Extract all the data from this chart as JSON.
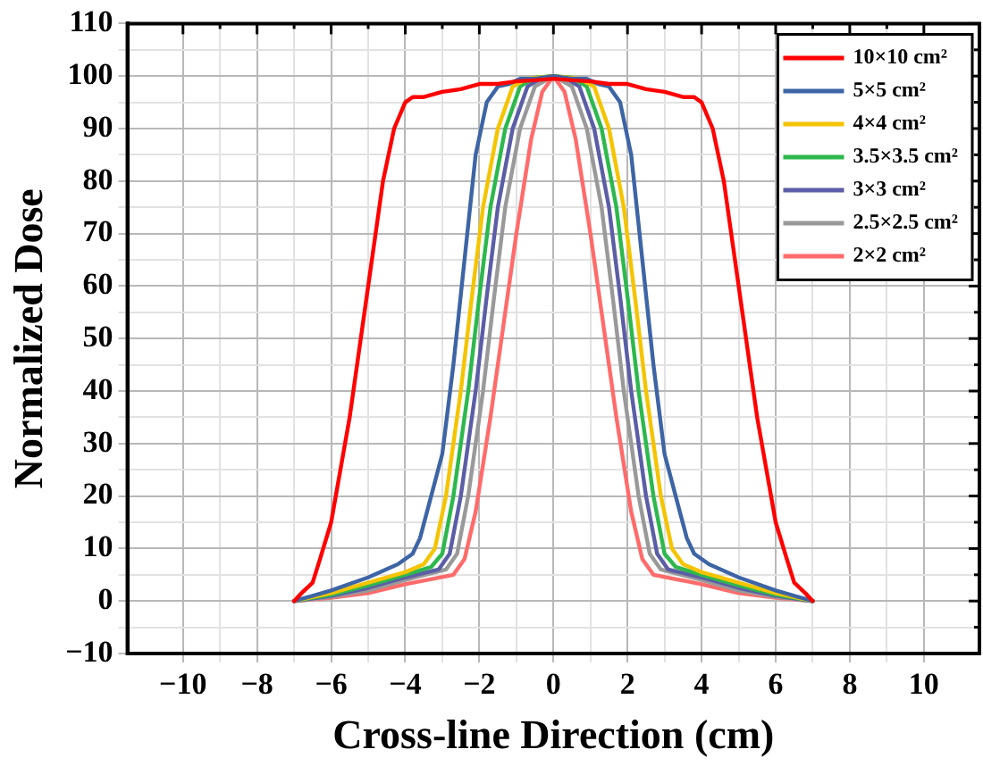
{
  "chart_data": {
    "type": "line",
    "xlabel": "Cross-line Direction (cm)",
    "ylabel": "Normalized Dose",
    "xlim": [
      -11.5,
      11.5
    ],
    "xticks": [
      -10,
      -8,
      -6,
      -4,
      -2,
      0,
      2,
      4,
      6,
      8,
      10
    ],
    "ylim": [
      -10,
      110
    ],
    "yticks": [
      -10,
      0,
      10,
      20,
      30,
      40,
      50,
      60,
      70,
      80,
      90,
      100,
      110
    ],
    "grid": true,
    "legend": "top right",
    "marker": "none",
    "line_style": "solid",
    "series": [
      {
        "name": "10×10 cm²",
        "color": "#ff0000",
        "x": [
          -7,
          -6.8,
          -6.5,
          -6.3,
          -6,
          -5.5,
          -5,
          -4.6,
          -4.3,
          -4,
          -3.8,
          -3.5,
          -3,
          -2.5,
          -2,
          -1.5,
          -1,
          -0.5,
          0,
          0.5,
          1,
          1.5,
          2,
          2.5,
          3,
          3.5,
          3.8,
          4,
          4.3,
          4.6,
          5,
          5.5,
          6,
          6.3,
          6.5,
          6.8,
          7
        ],
        "values": [
          0,
          1.5,
          3.5,
          8,
          15,
          35,
          60,
          80,
          90,
          95,
          96,
          96,
          97,
          97.5,
          98.5,
          98.5,
          99,
          99.2,
          99.5,
          99.2,
          99,
          98.5,
          98.5,
          97.5,
          97,
          96,
          96,
          95,
          90,
          80,
          60,
          35,
          15,
          8,
          3.5,
          1.5,
          0
        ]
      },
      {
        "name": "5×5 cm²",
        "color": "#3d65a5",
        "x": [
          -7,
          -6.5,
          -6,
          -5,
          -4.2,
          -3.8,
          -3.6,
          -3.3,
          -3,
          -2.7,
          -2.4,
          -2.1,
          -1.8,
          -1.5,
          -1.2,
          -0.9,
          -0.5,
          0,
          0.5,
          0.9,
          1.2,
          1.5,
          1.8,
          2.1,
          2.4,
          2.7,
          3,
          3.3,
          3.6,
          3.8,
          4.2,
          5,
          6,
          6.5,
          7
        ],
        "values": [
          0,
          1,
          2,
          4.5,
          7,
          9,
          12,
          20,
          28,
          45,
          65,
          85,
          95,
          98,
          98.5,
          99.5,
          99.5,
          100,
          99.5,
          99.5,
          98.5,
          98,
          95,
          85,
          65,
          45,
          28,
          20,
          12,
          9,
          7,
          4.5,
          2,
          1,
          0
        ]
      },
      {
        "name": "4×4 cm²",
        "color": "#f5c400",
        "x": [
          -7,
          -6,
          -5,
          -4,
          -3.5,
          -3.2,
          -2.9,
          -2.5,
          -2.2,
          -1.9,
          -1.5,
          -1.1,
          -0.7,
          0,
          0.7,
          1.1,
          1.5,
          1.9,
          2.2,
          2.5,
          2.9,
          3.2,
          3.5,
          4,
          5,
          6,
          7
        ],
        "values": [
          0,
          1.5,
          3.5,
          5.5,
          7,
          10,
          20,
          40,
          58,
          75,
          90,
          98,
          99.5,
          100,
          99.5,
          98,
          90,
          75,
          58,
          40,
          20,
          10,
          7,
          5.5,
          3.5,
          1.5,
          0
        ]
      },
      {
        "name": "3.5×3.5 cm²",
        "color": "#2db84d",
        "x": [
          -7,
          -6,
          -5,
          -4,
          -3.3,
          -3,
          -2.7,
          -2.3,
          -2,
          -1.7,
          -1.3,
          -0.9,
          -0.5,
          0,
          0.5,
          0.9,
          1.3,
          1.7,
          2,
          2.3,
          2.7,
          3,
          3.3,
          4,
          5,
          6,
          7
        ],
        "values": [
          0,
          1.2,
          3,
          5,
          6.5,
          9,
          20,
          40,
          58,
          75,
          90,
          98,
          99.7,
          100,
          99.7,
          98,
          90,
          75,
          58,
          40,
          20,
          9,
          6.5,
          5,
          3,
          1.2,
          0
        ]
      },
      {
        "name": "3×3 cm²",
        "color": "#5b5ea6",
        "x": [
          -7,
          -6,
          -5,
          -4,
          -3.1,
          -2.8,
          -2.5,
          -2.1,
          -1.8,
          -1.5,
          -1.1,
          -0.7,
          -0.3,
          0,
          0.3,
          0.7,
          1.1,
          1.5,
          1.8,
          2.1,
          2.5,
          2.8,
          3.1,
          4,
          5,
          6,
          7
        ],
        "values": [
          0,
          1,
          2.5,
          4.5,
          6,
          9,
          20,
          40,
          58,
          75,
          90,
          98,
          99.7,
          100,
          99.7,
          98,
          90,
          75,
          58,
          40,
          20,
          9,
          6,
          4.5,
          2.5,
          1,
          0
        ]
      },
      {
        "name": "2.5×2.5 cm²",
        "color": "#999999",
        "x": [
          -7,
          -6,
          -5,
          -4,
          -2.9,
          -2.6,
          -2.3,
          -1.9,
          -1.6,
          -1.3,
          -0.9,
          -0.5,
          0,
          0.5,
          0.9,
          1.3,
          1.6,
          1.9,
          2.3,
          2.6,
          2.9,
          4,
          5,
          6,
          7
        ],
        "values": [
          0,
          0.8,
          2,
          4,
          6,
          9,
          20,
          40,
          58,
          75,
          90,
          98,
          100,
          98,
          90,
          75,
          58,
          40,
          20,
          9,
          6,
          4,
          2,
          0.8,
          0
        ]
      },
      {
        "name": "2×2 cm²",
        "color": "#ff6b6b",
        "x": [
          -7,
          -6,
          -5,
          -4,
          -2.7,
          -2.4,
          -2.1,
          -1.7,
          -1.3,
          -1,
          -0.6,
          -0.3,
          0,
          0.3,
          0.6,
          1,
          1.3,
          1.7,
          2.1,
          2.4,
          2.7,
          4,
          5,
          6,
          7
        ],
        "values": [
          0,
          0.6,
          1.5,
          3.2,
          5,
          8,
          17,
          35,
          55,
          70,
          88,
          97,
          100,
          97,
          88,
          70,
          55,
          35,
          17,
          8,
          5,
          3.2,
          1.5,
          0.6,
          0
        ]
      }
    ]
  }
}
